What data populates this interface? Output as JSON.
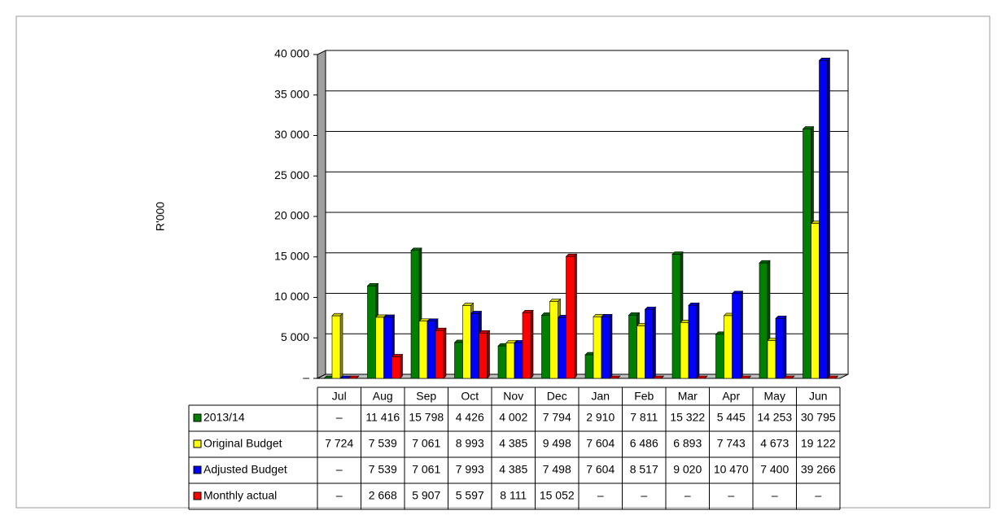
{
  "chart_data": {
    "type": "bar",
    "y_axis_label": "R'000",
    "categories": [
      "Jul",
      "Aug",
      "Sep",
      "Oct",
      "Nov",
      "Dec",
      "Jan",
      "Feb",
      "Mar",
      "Apr",
      "May",
      "Jun"
    ],
    "series": [
      {
        "name": "2013/14",
        "color": "#008000",
        "values": [
          0,
          11416,
          15798,
          4426,
          4002,
          7794,
          2910,
          7811,
          15322,
          5445,
          14253,
          30795
        ],
        "value_labels": [
          "–",
          "11 416",
          "15 798",
          "4 426",
          "4 002",
          "7 794",
          "2 910",
          "7 811",
          "15 322",
          "5 445",
          "14 253",
          "30 795"
        ]
      },
      {
        "name": "Original Budget",
        "color": "#ffff00",
        "values": [
          7724,
          7539,
          7061,
          8993,
          4385,
          9498,
          7604,
          6486,
          6893,
          7743,
          4673,
          19122
        ],
        "value_labels": [
          "7 724",
          "7 539",
          "7 061",
          "8 993",
          "4 385",
          "9 498",
          "7 604",
          "6 486",
          "6 893",
          "7 743",
          "4 673",
          "19 122"
        ]
      },
      {
        "name": "Adjusted Budget",
        "color": "#0000ff",
        "values": [
          0,
          7539,
          7061,
          7993,
          4385,
          7498,
          7604,
          8517,
          9020,
          10470,
          7400,
          39266
        ],
        "value_labels": [
          "–",
          "7 539",
          "7 061",
          "7 993",
          "4 385",
          "7 498",
          "7 604",
          "8 517",
          "9 020",
          "10 470",
          "7 400",
          "39 266"
        ]
      },
      {
        "name": "Monthly actual",
        "color": "#ff0000",
        "values": [
          0,
          2668,
          5907,
          5597,
          8111,
          15052,
          0,
          0,
          0,
          0,
          0,
          0
        ],
        "value_labels": [
          "–",
          "2 668",
          "5 907",
          "5 597",
          "8 111",
          "15 052",
          "–",
          "–",
          "–",
          "–",
          "–",
          "–"
        ]
      }
    ],
    "ylim": [
      0,
      40000
    ],
    "yticks": [
      {
        "value": 0,
        "label": "–"
      },
      {
        "value": 5000,
        "label": "5 000"
      },
      {
        "value": 10000,
        "label": "10 000"
      },
      {
        "value": 15000,
        "label": "15 000"
      },
      {
        "value": 20000,
        "label": "20 000"
      },
      {
        "value": 25000,
        "label": "25 000"
      },
      {
        "value": 30000,
        "label": "30 000"
      },
      {
        "value": 35000,
        "label": "35 000"
      },
      {
        "value": 40000,
        "label": "40 000"
      }
    ],
    "grid": true
  }
}
